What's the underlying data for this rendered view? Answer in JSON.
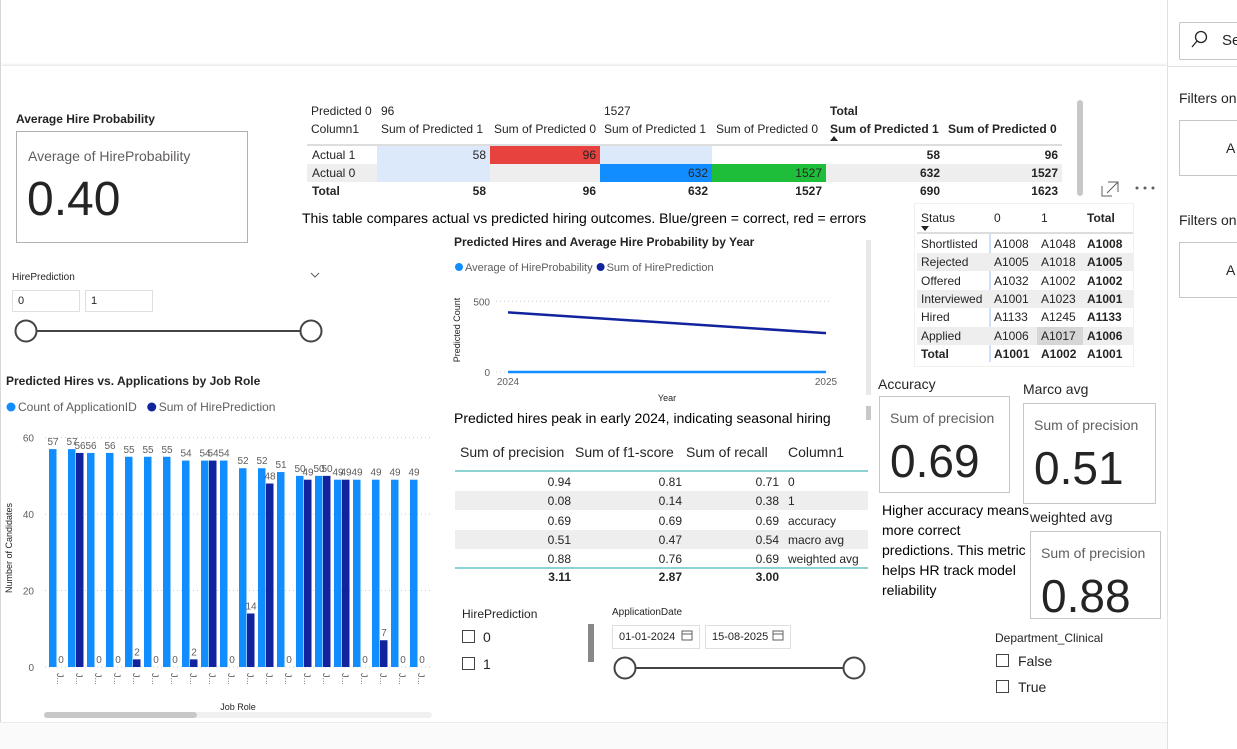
{
  "hire_card": {
    "title": "Average Hire Probability",
    "label": "Average of HireProbability",
    "value": "0.40"
  },
  "hire_slider": {
    "title": "HirePrediction",
    "min": "0",
    "max": "1"
  },
  "chart_data": [
    {
      "type": "bar",
      "title": "Predicted Hires vs. Applications by Job Role",
      "x_label": "Job Role",
      "y_label": "Number of Candidates",
      "categories": [
        "J...",
        "J...",
        "J...",
        "J...",
        "J...",
        "J...",
        "J...",
        "J...",
        "J...",
        "J...",
        "J...",
        "J...",
        "J...",
        "J...",
        "J...",
        "J...",
        "J...",
        "J...",
        "J...",
        "J..."
      ],
      "series": [
        {
          "name": "Count of ApplicationID",
          "color": "#118dff",
          "values": [
            57,
            57,
            56,
            56,
            55,
            55,
            55,
            54,
            54,
            54,
            52,
            52,
            51,
            50,
            50,
            49,
            49,
            49,
            49,
            49
          ]
        },
        {
          "name": "Sum of HirePrediction",
          "color": "#12239e",
          "values": [
            0,
            56,
            0,
            0,
            2,
            0,
            0,
            2,
            54,
            0,
            14,
            48,
            0,
            49,
            50,
            49,
            0,
            7,
            0,
            0
          ]
        }
      ],
      "ylim": [
        0,
        62
      ],
      "yticks": [
        0,
        20,
        40,
        60
      ],
      "grid": true,
      "legend": "top-left"
    },
    {
      "type": "line",
      "title": "Predicted Hires and Average Hire Probability by Year",
      "x_label": "Year",
      "y_label": "Predicted Count",
      "x": [
        2024,
        2025
      ],
      "xlim": [
        2024,
        2025
      ],
      "xticks": [
        2024,
        2025
      ],
      "series": [
        {
          "name": "Average of HireProbability",
          "color": "#118dff",
          "values": [
            0.4,
            0.4
          ]
        },
        {
          "name": "Sum of HirePrediction",
          "color": "#12239e",
          "values": [
            422,
            275
          ]
        }
      ],
      "ylim": [
        0,
        580
      ],
      "yticks": [
        0,
        500
      ],
      "grid": true,
      "legend": "top-left"
    }
  ],
  "outcome_matrix": {
    "corner_top": "Predicted 0",
    "corner": "Column1",
    "groups": [
      "96",
      "1527",
      "Total"
    ],
    "columns": [
      "Sum of Predicted 1",
      "Sum of Predicted 0",
      "Sum of Predicted 1",
      "Sum of Predicted 0",
      "Sum of Predicted 1",
      "Sum of Predicted 0"
    ],
    "rows": [
      {
        "label": "Actual 1",
        "cells": [
          "58",
          "96",
          null,
          null,
          "58",
          "96"
        ]
      },
      {
        "label": "Actual 0",
        "cells": [
          null,
          null,
          "632",
          "1527",
          "632",
          "1527"
        ]
      },
      {
        "label": "Total",
        "cells": [
          "58",
          "96",
          "632",
          "1527",
          "690",
          "1623"
        ]
      }
    ]
  },
  "captions": {
    "matrix": "This table compares actual vs predicted hiring outcomes. Blue/green = correct, red = errors",
    "line": "Predicted hires peak in early 2024, indicating seasonal hiring",
    "accuracy": "Higher accuracy means more correct predictions. This metric helps HR track model reliability"
  },
  "status_matrix": {
    "columns": [
      "Status",
      "0",
      "1",
      "Total"
    ],
    "rows": [
      [
        "Shortlisted",
        "A1008",
        "A1048",
        "A1008"
      ],
      [
        "Rejected",
        "A1005",
        "A1018",
        "A1005"
      ],
      [
        "Offered",
        "A1032",
        "A1002",
        "A1002"
      ],
      [
        "Interviewed",
        "A1001",
        "A1023",
        "A1001"
      ],
      [
        "Hired",
        "A1133",
        "A1245",
        "A1133"
      ],
      [
        "Applied",
        "A1006",
        "A1017",
        "A1006"
      ],
      [
        "Total",
        "A1001",
        "A1002",
        "A1001"
      ]
    ]
  },
  "metrics_table": {
    "columns": [
      "Sum of precision",
      "Sum of f1-score",
      "Sum of recall",
      "Column1"
    ],
    "rows": [
      [
        "0.94",
        "0.81",
        "0.71",
        "0"
      ],
      [
        "0.08",
        "0.14",
        "0.38",
        "1"
      ],
      [
        "0.69",
        "0.69",
        "0.69",
        "accuracy"
      ],
      [
        "0.51",
        "0.47",
        "0.54",
        "macro avg"
      ],
      [
        "0.88",
        "0.76",
        "0.69",
        "weighted avg"
      ]
    ],
    "totals": [
      "3.11",
      "2.87",
      "3.00"
    ]
  },
  "cards": [
    {
      "title": "Accuracy",
      "label": "Sum of precision",
      "value": "0.69"
    },
    {
      "title": "Marco avg",
      "label": "Sum of precision",
      "value": "0.51"
    },
    {
      "title": "weighted avg",
      "label": "Sum of precision",
      "value": "0.88"
    }
  ],
  "prediction_slicer": {
    "title": "HirePrediction",
    "options": [
      "0",
      "1"
    ]
  },
  "date_slicer": {
    "title": "ApplicationDate",
    "start": "01-01-2024",
    "end": "15-08-2025"
  },
  "department_slicer": {
    "title": "Department_Clinical",
    "options": [
      "False",
      "True"
    ]
  },
  "filter_pane": {
    "search": "Se",
    "sections": [
      {
        "title": "Filters on",
        "button": "A"
      },
      {
        "title": "Filters on",
        "button": "A"
      }
    ]
  }
}
